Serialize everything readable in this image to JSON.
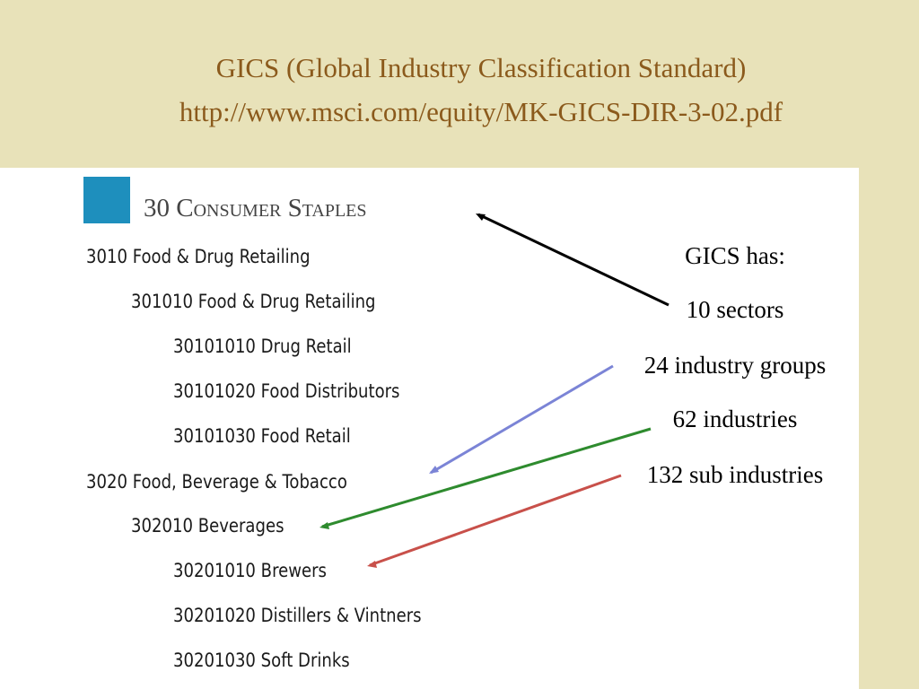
{
  "title": {
    "line1": "GICS (Global Industry Classification Standard)",
    "line2": "http://www.msci.com/equity/MK-GICS-DIR-3-02.pdf"
  },
  "sector": {
    "heading": "30 Consumer Staples"
  },
  "hierarchy": [
    {
      "code": "3010",
      "name": "Food & Drug Retailing"
    },
    {
      "code": "301010",
      "name": "Food & Drug Retailing"
    },
    {
      "code": "30101010",
      "name": "Drug Retail"
    },
    {
      "code": "30101020",
      "name": "Food Distributors"
    },
    {
      "code": "30101030",
      "name": "Food Retail"
    },
    {
      "code": "3020",
      "name": "Food, Beverage & Tobacco"
    },
    {
      "code": "302010",
      "name": "Beverages"
    },
    {
      "code": "30201010",
      "name": "Brewers"
    },
    {
      "code": "30201020",
      "name": "Distillers & Vintners"
    },
    {
      "code": "30201030",
      "name": "Soft Drinks"
    }
  ],
  "stats": {
    "heading": "GICS has:",
    "sectors": "10 sectors",
    "industry_groups": "24 industry groups",
    "industries": "62 industries",
    "sub_industries": "132 sub industries"
  },
  "colors": {
    "background": "#e8e2b9",
    "title": "#8b5a1c",
    "sector_square": "#1e8fbd",
    "arrow_sectors": "#000000",
    "arrow_industry_groups": "#7b84d6",
    "arrow_industries": "#2e8b2e",
    "arrow_sub_industries": "#c8504a"
  }
}
